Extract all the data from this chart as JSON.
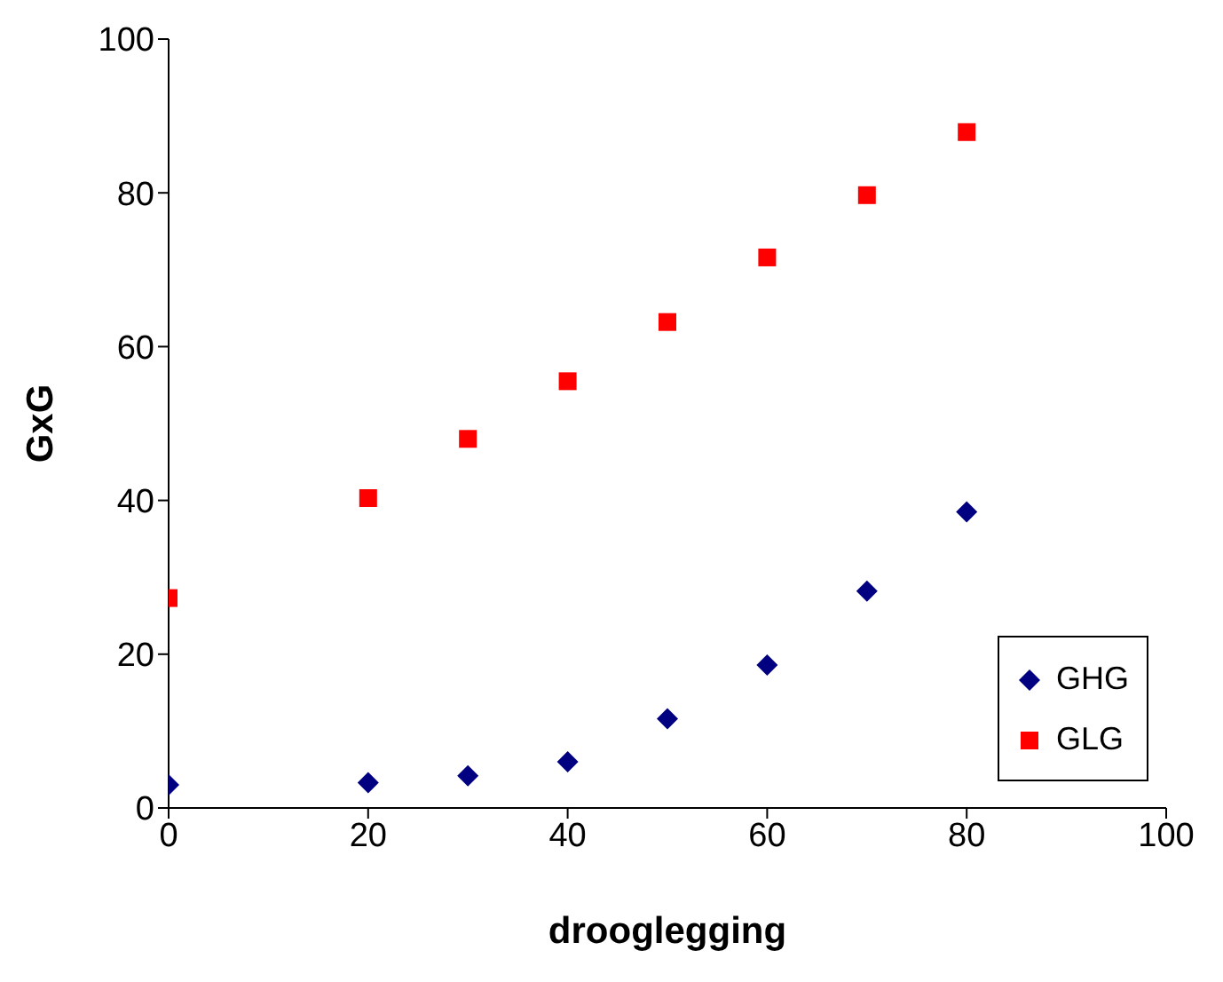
{
  "chart_data": {
    "type": "scatter",
    "xlabel": "drooglegging",
    "ylabel": "GxG",
    "x": [
      0,
      20,
      30,
      40,
      50,
      60,
      70,
      80
    ],
    "series": [
      {
        "name": "GHG",
        "color": "#000080",
        "marker": "diamond",
        "values": [
          3,
          3.3,
          4.2,
          6,
          11.6,
          18.6,
          28.2,
          38.5
        ]
      },
      {
        "name": "GLG",
        "color": "#ff0000",
        "marker": "square",
        "values": [
          27.3,
          40.3,
          48,
          55.5,
          63.2,
          71.6,
          79.7,
          87.9
        ]
      }
    ],
    "xlim": [
      0,
      100
    ],
    "xticks": [
      0,
      20,
      40,
      60,
      80,
      100
    ],
    "ylim": [
      0,
      100
    ],
    "yticks": [
      0,
      20,
      40,
      60,
      80,
      100
    ],
    "grid": false,
    "legend": "bottom right"
  }
}
